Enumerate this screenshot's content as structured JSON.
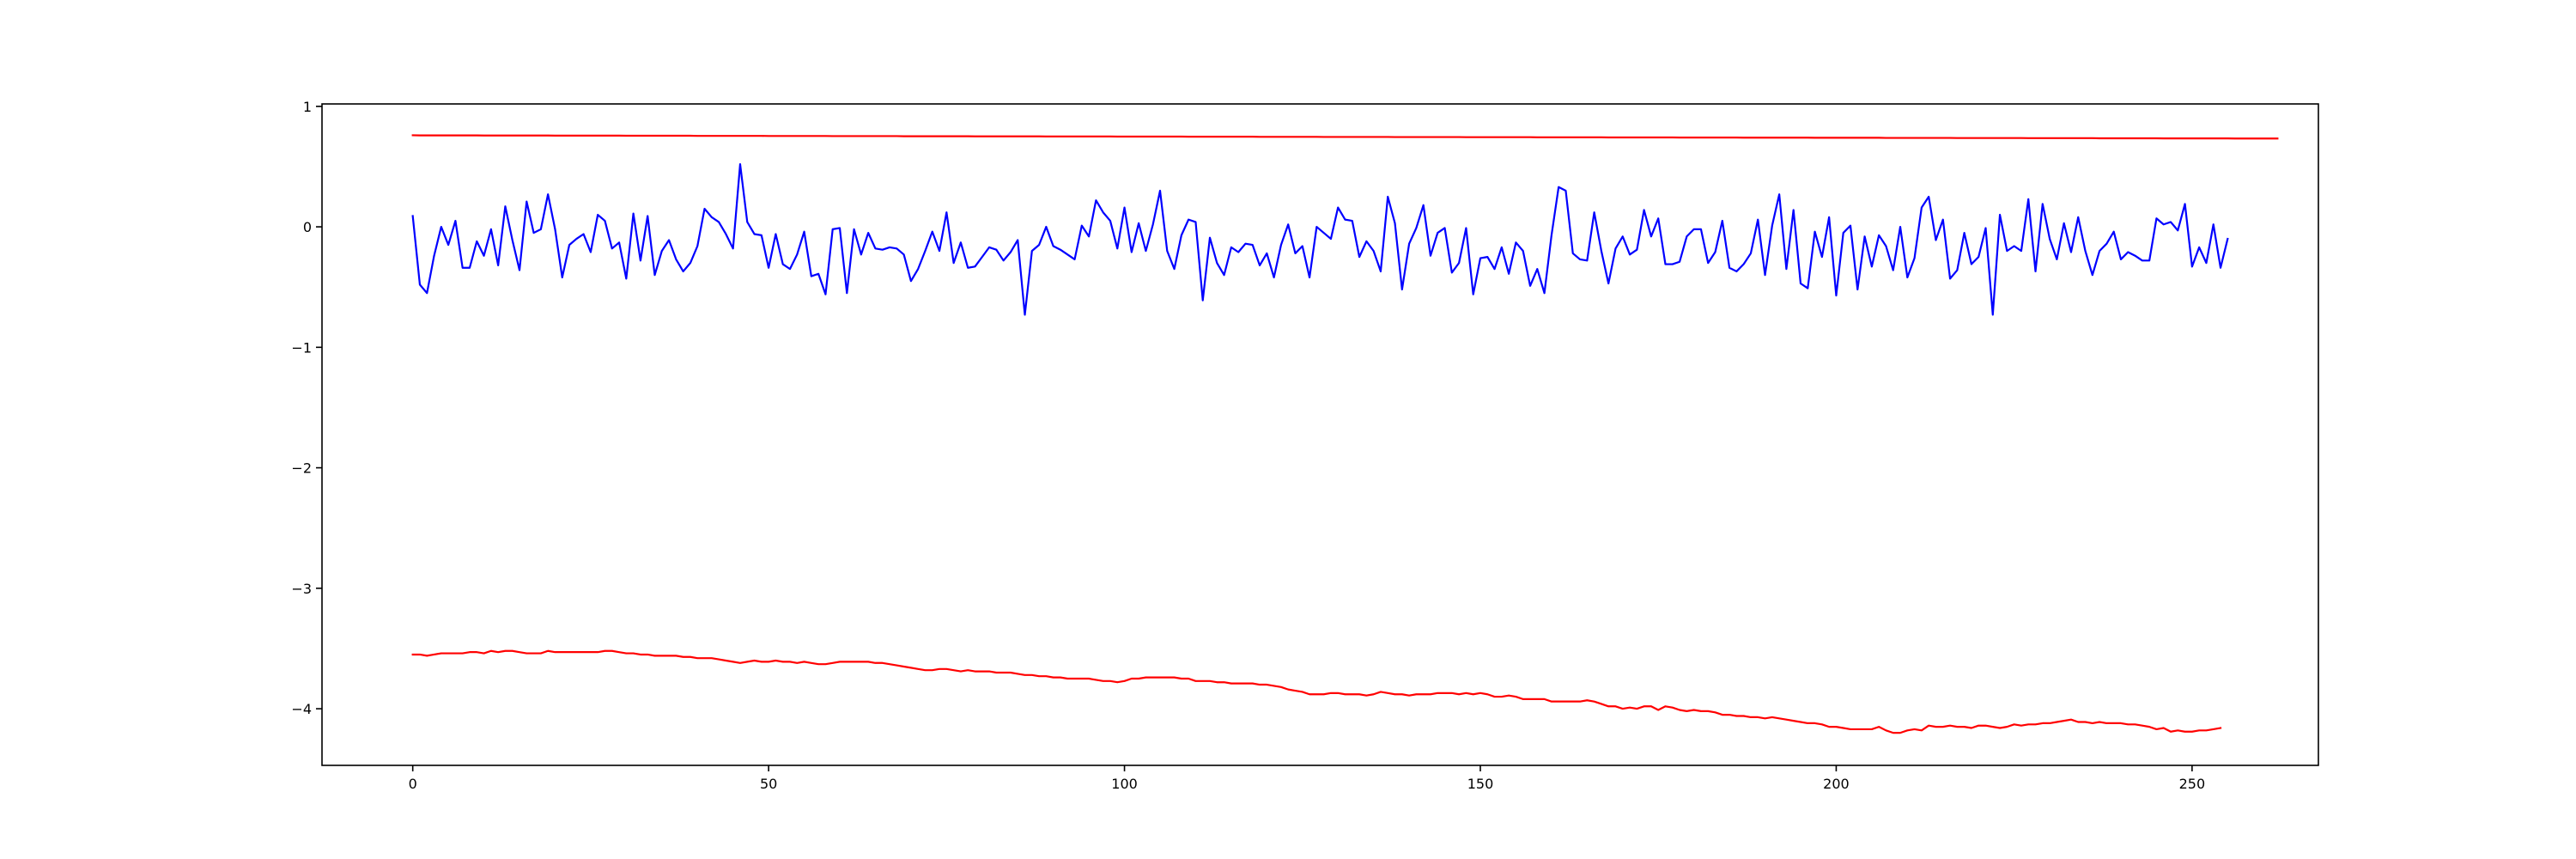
{
  "chart_data": {
    "type": "line",
    "title": "",
    "xlabel": "",
    "ylabel": "",
    "xlim": [
      -12.75,
      267.75
    ],
    "ylim": [
      -4.47,
      1.02
    ],
    "x_ticks": [
      0,
      50,
      100,
      150,
      200,
      250
    ],
    "y_ticks": [
      1,
      0,
      -1,
      -2,
      -3,
      -4
    ],
    "x_tick_labels": [
      "0",
      "50",
      "100",
      "150",
      "200",
      "250"
    ],
    "y_tick_labels": [
      "1",
      "0",
      "−1",
      "−2",
      "−3",
      "−4"
    ],
    "grid": false,
    "legend": "none",
    "series": [
      {
        "color": "#ff0000",
        "x_start": 0,
        "x_step": 1,
        "values": [
          0.76,
          0.759,
          0.759,
          0.759,
          0.759,
          0.759,
          0.759,
          0.759,
          0.759,
          0.759,
          0.758,
          0.758,
          0.758,
          0.758,
          0.758,
          0.758,
          0.758,
          0.758,
          0.758,
          0.758,
          0.757,
          0.757,
          0.757,
          0.757,
          0.757,
          0.757,
          0.757,
          0.757,
          0.757,
          0.757,
          0.756,
          0.756,
          0.756,
          0.756,
          0.756,
          0.756,
          0.756,
          0.756,
          0.756,
          0.756,
          0.755,
          0.755,
          0.755,
          0.755,
          0.755,
          0.755,
          0.755,
          0.755,
          0.755,
          0.755,
          0.754,
          0.754,
          0.754,
          0.754,
          0.754,
          0.754,
          0.754,
          0.754,
          0.754,
          0.753,
          0.753,
          0.753,
          0.753,
          0.753,
          0.753,
          0.753,
          0.753,
          0.753,
          0.753,
          0.752,
          0.752,
          0.752,
          0.752,
          0.752,
          0.752,
          0.752,
          0.752,
          0.752,
          0.752,
          0.751,
          0.751,
          0.751,
          0.751,
          0.751,
          0.751,
          0.751,
          0.751,
          0.751,
          0.751,
          0.75,
          0.75,
          0.75,
          0.75,
          0.75,
          0.75,
          0.75,
          0.75,
          0.75,
          0.75,
          0.749,
          0.749,
          0.749,
          0.749,
          0.749,
          0.749,
          0.749,
          0.749,
          0.749,
          0.749,
          0.748,
          0.748,
          0.748,
          0.748,
          0.748,
          0.748,
          0.748,
          0.748,
          0.748,
          0.748,
          0.747,
          0.747,
          0.747,
          0.747,
          0.747,
          0.747,
          0.747,
          0.747,
          0.747,
          0.746,
          0.746,
          0.746,
          0.746,
          0.746,
          0.746,
          0.746,
          0.746,
          0.746,
          0.746,
          0.745,
          0.745,
          0.745,
          0.745,
          0.745,
          0.745,
          0.745,
          0.745,
          0.745,
          0.745,
          0.744,
          0.744,
          0.744,
          0.744,
          0.744,
          0.744,
          0.744,
          0.744,
          0.744,
          0.744,
          0.743,
          0.743,
          0.743,
          0.743,
          0.743,
          0.743,
          0.743,
          0.743,
          0.743,
          0.743,
          0.742,
          0.742,
          0.742,
          0.742,
          0.742,
          0.742,
          0.742,
          0.742,
          0.742,
          0.742,
          0.741,
          0.741,
          0.741,
          0.741,
          0.741,
          0.741,
          0.741,
          0.741,
          0.741,
          0.74,
          0.74,
          0.74,
          0.74,
          0.74,
          0.74,
          0.74,
          0.74,
          0.74,
          0.74,
          0.739,
          0.739,
          0.739,
          0.739,
          0.739,
          0.739,
          0.739,
          0.739,
          0.739,
          0.739,
          0.738,
          0.738,
          0.738,
          0.738,
          0.738,
          0.738,
          0.738,
          0.738,
          0.738,
          0.738,
          0.737,
          0.737,
          0.737,
          0.737,
          0.737,
          0.737,
          0.737,
          0.737,
          0.737,
          0.737,
          0.736,
          0.736,
          0.736,
          0.736,
          0.736,
          0.736,
          0.736,
          0.736,
          0.736,
          0.736,
          0.735,
          0.735,
          0.735,
          0.735,
          0.735,
          0.735,
          0.735,
          0.735,
          0.735,
          0.734,
          0.734,
          0.734,
          0.734,
          0.734,
          0.734,
          0.734,
          0.734,
          0.734,
          0.734,
          0.733,
          0.733,
          0.733,
          0.733,
          0.733,
          0.733,
          0.733
        ]
      },
      {
        "color": "#0000ff",
        "x_start": 0,
        "x_step": 1,
        "values": [
          0.09,
          -0.48,
          -0.55,
          -0.24,
          0,
          -0.15,
          0.05,
          -0.34,
          -0.34,
          -0.12,
          -0.24,
          -0.02,
          -0.32,
          0.17,
          -0.11,
          -0.36,
          0.21,
          -0.05,
          -0.02,
          0.27,
          -0.02,
          -0.42,
          -0.15,
          -0.1,
          -0.06,
          -0.21,
          0.1,
          0.05,
          -0.18,
          -0.13,
          -0.43,
          0.11,
          -0.28,
          0.09,
          -0.4,
          -0.2,
          -0.11,
          -0.27,
          -0.37,
          -0.3,
          -0.16,
          0.15,
          0.08,
          0.04,
          -0.06,
          -0.18,
          0.52,
          0.04,
          -0.06,
          -0.07,
          -0.34,
          -0.06,
          -0.31,
          -0.35,
          -0.23,
          -0.04,
          -0.41,
          -0.39,
          -0.56,
          -0.02,
          -0.01,
          -0.55,
          -0.02,
          -0.23,
          -0.05,
          -0.18,
          -0.19,
          -0.17,
          -0.18,
          -0.23,
          -0.45,
          -0.35,
          -0.2,
          -0.04,
          -0.2,
          0.12,
          -0.3,
          -0.13,
          -0.34,
          -0.33,
          -0.25,
          -0.17,
          -0.19,
          -0.28,
          -0.21,
          -0.11,
          -0.73,
          -0.2,
          -0.15,
          0,
          -0.16,
          -0.19,
          -0.23,
          -0.27,
          0.01,
          -0.08,
          0.22,
          0.12,
          0.05,
          -0.18,
          0.16,
          -0.21,
          0.03,
          -0.2,
          0.02,
          0.3,
          -0.2,
          -0.35,
          -0.07,
          0.06,
          0.04,
          -0.61,
          -0.09,
          -0.3,
          -0.4,
          -0.17,
          -0.21,
          -0.14,
          -0.15,
          -0.32,
          -0.22,
          -0.42,
          -0.15,
          0.02,
          -0.22,
          -0.16,
          -0.42,
          0,
          -0.05,
          -0.1,
          0.16,
          0.06,
          0.05,
          -0.25,
          -0.12,
          -0.2,
          -0.37,
          0.25,
          0.03,
          -0.52,
          -0.14,
          -0.01,
          0.18,
          -0.24,
          -0.05,
          -0.01,
          -0.38,
          -0.3,
          -0.01,
          -0.56,
          -0.26,
          -0.25,
          -0.35,
          -0.17,
          -0.39,
          -0.13,
          -0.2,
          -0.49,
          -0.35,
          -0.55,
          -0.07,
          0.33,
          0.3,
          -0.22,
          -0.27,
          -0.28,
          0.12,
          -0.2,
          -0.47,
          -0.18,
          -0.08,
          -0.23,
          -0.19,
          0.14,
          -0.08,
          0.07,
          -0.31,
          -0.31,
          -0.29,
          -0.08,
          -0.02,
          -0.02,
          -0.3,
          -0.21,
          0.05,
          -0.34,
          -0.37,
          -0.31,
          -0.22,
          0.06,
          -0.4,
          0.01,
          0.27,
          -0.35,
          0.14,
          -0.47,
          -0.51,
          -0.04,
          -0.25,
          0.08,
          -0.57,
          -0.05,
          0.01,
          -0.52,
          -0.08,
          -0.33,
          -0.07,
          -0.16,
          -0.36,
          0,
          -0.42,
          -0.26,
          0.16,
          0.25,
          -0.11,
          0.06,
          -0.43,
          -0.36,
          -0.05,
          -0.31,
          -0.25,
          -0.01,
          -0.73,
          0.1,
          -0.2,
          -0.16,
          -0.2,
          0.23,
          -0.37,
          0.19,
          -0.1,
          -0.27,
          0.03,
          -0.21,
          0.08,
          -0.2,
          -0.4,
          -0.2,
          -0.14,
          -0.04,
          -0.27,
          -0.21,
          -0.24,
          -0.28,
          -0.28,
          0.07,
          0.02,
          0.04,
          -0.03,
          0.19,
          -0.33,
          -0.17,
          -0.3,
          0.02,
          -0.34,
          -0.1
        ]
      },
      {
        "color": "#ff0000",
        "x_start": 0,
        "x_step": 1,
        "values": [
          -3.55,
          -3.55,
          -3.56,
          -3.55,
          -3.54,
          -3.54,
          -3.54,
          -3.54,
          -3.53,
          -3.53,
          -3.54,
          -3.52,
          -3.53,
          -3.52,
          -3.52,
          -3.53,
          -3.54,
          -3.54,
          -3.54,
          -3.52,
          -3.53,
          -3.53,
          -3.53,
          -3.53,
          -3.53,
          -3.53,
          -3.53,
          -3.52,
          -3.52,
          -3.53,
          -3.54,
          -3.54,
          -3.55,
          -3.55,
          -3.56,
          -3.56,
          -3.56,
          -3.56,
          -3.57,
          -3.57,
          -3.58,
          -3.58,
          -3.58,
          -3.59,
          -3.6,
          -3.61,
          -3.62,
          -3.61,
          -3.6,
          -3.61,
          -3.61,
          -3.6,
          -3.61,
          -3.61,
          -3.62,
          -3.61,
          -3.62,
          -3.63,
          -3.63,
          -3.62,
          -3.61,
          -3.61,
          -3.61,
          -3.61,
          -3.61,
          -3.62,
          -3.62,
          -3.63,
          -3.64,
          -3.65,
          -3.66,
          -3.67,
          -3.68,
          -3.68,
          -3.67,
          -3.67,
          -3.68,
          -3.69,
          -3.68,
          -3.69,
          -3.69,
          -3.69,
          -3.7,
          -3.7,
          -3.7,
          -3.71,
          -3.72,
          -3.72,
          -3.73,
          -3.73,
          -3.74,
          -3.74,
          -3.75,
          -3.75,
          -3.75,
          -3.75,
          -3.76,
          -3.77,
          -3.77,
          -3.78,
          -3.77,
          -3.75,
          -3.75,
          -3.74,
          -3.74,
          -3.74,
          -3.74,
          -3.74,
          -3.75,
          -3.75,
          -3.77,
          -3.77,
          -3.77,
          -3.78,
          -3.78,
          -3.79,
          -3.79,
          -3.79,
          -3.79,
          -3.8,
          -3.8,
          -3.81,
          -3.82,
          -3.84,
          -3.85,
          -3.86,
          -3.88,
          -3.88,
          -3.88,
          -3.87,
          -3.87,
          -3.88,
          -3.88,
          -3.88,
          -3.89,
          -3.88,
          -3.86,
          -3.87,
          -3.88,
          -3.88,
          -3.89,
          -3.88,
          -3.88,
          -3.88,
          -3.87,
          -3.87,
          -3.87,
          -3.88,
          -3.87,
          -3.88,
          -3.87,
          -3.88,
          -3.9,
          -3.9,
          -3.89,
          -3.9,
          -3.92,
          -3.92,
          -3.92,
          -3.92,
          -3.94,
          -3.94,
          -3.94,
          -3.94,
          -3.94,
          -3.93,
          -3.94,
          -3.96,
          -3.98,
          -3.98,
          -4,
          -3.99,
          -4,
          -3.98,
          -3.98,
          -4.01,
          -3.98,
          -3.99,
          -4.01,
          -4.02,
          -4.01,
          -4.02,
          -4.02,
          -4.03,
          -4.05,
          -4.05,
          -4.06,
          -4.06,
          -4.07,
          -4.07,
          -4.08,
          -4.07,
          -4.08,
          -4.09,
          -4.1,
          -4.11,
          -4.12,
          -4.12,
          -4.13,
          -4.15,
          -4.15,
          -4.16,
          -4.17,
          -4.17,
          -4.17,
          -4.17,
          -4.15,
          -4.18,
          -4.2,
          -4.2,
          -4.18,
          -4.17,
          -4.18,
          -4.14,
          -4.15,
          -4.15,
          -4.14,
          -4.15,
          -4.15,
          -4.16,
          -4.14,
          -4.14,
          -4.15,
          -4.16,
          -4.15,
          -4.13,
          -4.14,
          -4.13,
          -4.13,
          -4.12,
          -4.12,
          -4.11,
          -4.1,
          -4.09,
          -4.11,
          -4.11,
          -4.12,
          -4.11,
          -4.12,
          -4.12,
          -4.12,
          -4.13,
          -4.13,
          -4.14,
          -4.15,
          -4.17,
          -4.16,
          -4.19,
          -4.18,
          -4.19,
          -4.19,
          -4.18,
          -4.18,
          -4.17,
          -4.16
        ]
      }
    ]
  }
}
